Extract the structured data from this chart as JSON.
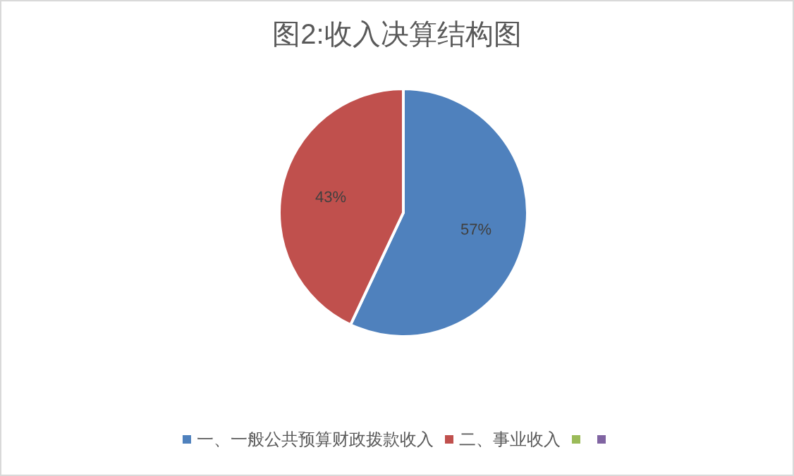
{
  "chart_data": {
    "type": "pie",
    "title": "图2:收入决算结构图",
    "categories": [
      "一、一般公共预算财政拨款收入",
      "二、事业收入",
      null,
      null
    ],
    "values": [
      57,
      43,
      0,
      0
    ],
    "colors": [
      "#4f81bd",
      "#c0504d",
      "#9bbb59",
      "#8064a2"
    ],
    "value_labels": [
      "57%",
      "43%",
      null,
      null
    ],
    "legend": "bottom"
  }
}
